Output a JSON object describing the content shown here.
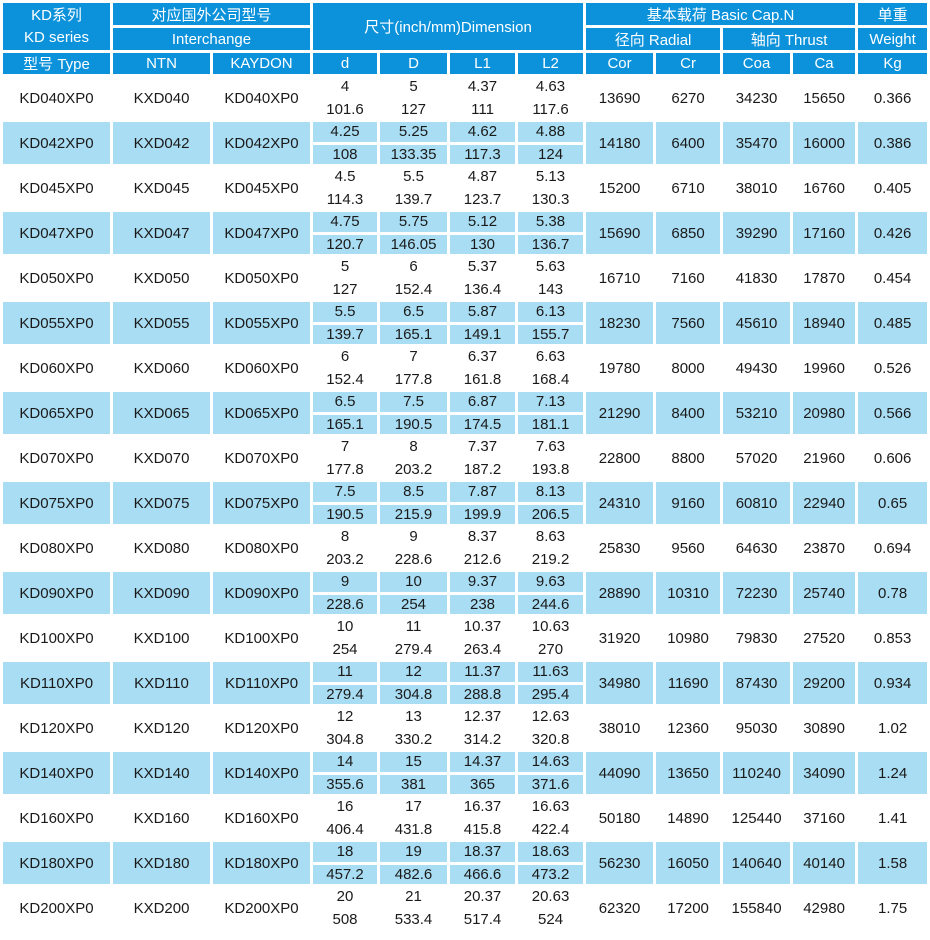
{
  "colors": {
    "header_bg": "#0c92db",
    "alt_row_bg": "#a9ddf3",
    "header_text": "#ffffff",
    "body_text": "#1a1a1a",
    "background": "#ffffff"
  },
  "table": {
    "header": {
      "kd_series_zh": "KD系列",
      "kd_series_en": "KD series",
      "interchange_zh": "对应国外公司型号",
      "interchange_en": "Interchange",
      "dimension": "尺寸(inch/mm)Dimension",
      "basic_cap": "基本载荷 Basic Cap.N",
      "radial": "径向 Radial",
      "thrust": "轴向 Thrust",
      "weight_zh": "单重",
      "weight_en": "Weight",
      "type_label": "型号 Type",
      "ntn": "NTN",
      "kaydon": "KAYDON",
      "d": "d",
      "D": "D",
      "L1": "L1",
      "L2": "L2",
      "cor": "Cor",
      "cr": "Cr",
      "coa": "Coa",
      "ca": "Ca",
      "kg": "Kg"
    },
    "rows": [
      {
        "type": "KD040XP0",
        "ntn": "KXD040",
        "kaydon": "KD040XP0",
        "d": [
          "4",
          "101.6"
        ],
        "D": [
          "5",
          "127"
        ],
        "L1": [
          "4.37",
          "111"
        ],
        "L2": [
          "4.63",
          "117.6"
        ],
        "cor": "13690",
        "cr": "6270",
        "coa": "34230",
        "ca": "15650",
        "kg": "0.366"
      },
      {
        "type": "KD042XP0",
        "ntn": "KXD042",
        "kaydon": "KD042XP0",
        "d": [
          "4.25",
          "108"
        ],
        "D": [
          "5.25",
          "133.35"
        ],
        "L1": [
          "4.62",
          "117.3"
        ],
        "L2": [
          "4.88",
          "124"
        ],
        "cor": "14180",
        "cr": "6400",
        "coa": "35470",
        "ca": "16000",
        "kg": "0.386"
      },
      {
        "type": "KD045XP0",
        "ntn": "KXD045",
        "kaydon": "KD045XP0",
        "d": [
          "4.5",
          "114.3"
        ],
        "D": [
          "5.5",
          "139.7"
        ],
        "L1": [
          "4.87",
          "123.7"
        ],
        "L2": [
          "5.13",
          "130.3"
        ],
        "cor": "15200",
        "cr": "6710",
        "coa": "38010",
        "ca": "16760",
        "kg": "0.405"
      },
      {
        "type": "KD047XP0",
        "ntn": "KXD047",
        "kaydon": "KD047XP0",
        "d": [
          "4.75",
          "120.7"
        ],
        "D": [
          "5.75",
          "146.05"
        ],
        "L1": [
          "5.12",
          "130"
        ],
        "L2": [
          "5.38",
          "136.7"
        ],
        "cor": "15690",
        "cr": "6850",
        "coa": "39290",
        "ca": "17160",
        "kg": "0.426"
      },
      {
        "type": "KD050XP0",
        "ntn": "KXD050",
        "kaydon": "KD050XP0",
        "d": [
          "5",
          "127"
        ],
        "D": [
          "6",
          "152.4"
        ],
        "L1": [
          "5.37",
          "136.4"
        ],
        "L2": [
          "5.63",
          "143"
        ],
        "cor": "16710",
        "cr": "7160",
        "coa": "41830",
        "ca": "17870",
        "kg": "0.454"
      },
      {
        "type": "KD055XP0",
        "ntn": "KXD055",
        "kaydon": "KD055XP0",
        "d": [
          "5.5",
          "139.7"
        ],
        "D": [
          "6.5",
          "165.1"
        ],
        "L1": [
          "5.87",
          "149.1"
        ],
        "L2": [
          "6.13",
          "155.7"
        ],
        "cor": "18230",
        "cr": "7560",
        "coa": "45610",
        "ca": "18940",
        "kg": "0.485"
      },
      {
        "type": "KD060XP0",
        "ntn": "KXD060",
        "kaydon": "KD060XP0",
        "d": [
          "6",
          "152.4"
        ],
        "D": [
          "7",
          "177.8"
        ],
        "L1": [
          "6.37",
          "161.8"
        ],
        "L2": [
          "6.63",
          "168.4"
        ],
        "cor": "19780",
        "cr": "8000",
        "coa": "49430",
        "ca": "19960",
        "kg": "0.526"
      },
      {
        "type": "KD065XP0",
        "ntn": "KXD065",
        "kaydon": "KD065XP0",
        "d": [
          "6.5",
          "165.1"
        ],
        "D": [
          "7.5",
          "190.5"
        ],
        "L1": [
          "6.87",
          "174.5"
        ],
        "L2": [
          "7.13",
          "181.1"
        ],
        "cor": "21290",
        "cr": "8400",
        "coa": "53210",
        "ca": "20980",
        "kg": "0.566"
      },
      {
        "type": "KD070XP0",
        "ntn": "KXD070",
        "kaydon": "KD070XP0",
        "d": [
          "7",
          "177.8"
        ],
        "D": [
          "8",
          "203.2"
        ],
        "L1": [
          "7.37",
          "187.2"
        ],
        "L2": [
          "7.63",
          "193.8"
        ],
        "cor": "22800",
        "cr": "8800",
        "coa": "57020",
        "ca": "21960",
        "kg": "0.606"
      },
      {
        "type": "KD075XP0",
        "ntn": "KXD075",
        "kaydon": "KD075XP0",
        "d": [
          "7.5",
          "190.5"
        ],
        "D": [
          "8.5",
          "215.9"
        ],
        "L1": [
          "7.87",
          "199.9"
        ],
        "L2": [
          "8.13",
          "206.5"
        ],
        "cor": "24310",
        "cr": "9160",
        "coa": "60810",
        "ca": "22940",
        "kg": "0.65"
      },
      {
        "type": "KD080XP0",
        "ntn": "KXD080",
        "kaydon": "KD080XP0",
        "d": [
          "8",
          "203.2"
        ],
        "D": [
          "9",
          "228.6"
        ],
        "L1": [
          "8.37",
          "212.6"
        ],
        "L2": [
          "8.63",
          "219.2"
        ],
        "cor": "25830",
        "cr": "9560",
        "coa": "64630",
        "ca": "23870",
        "kg": "0.694"
      },
      {
        "type": "KD090XP0",
        "ntn": "KXD090",
        "kaydon": "KD090XP0",
        "d": [
          "9",
          "228.6"
        ],
        "D": [
          "10",
          "254"
        ],
        "L1": [
          "9.37",
          "238"
        ],
        "L2": [
          "9.63",
          "244.6"
        ],
        "cor": "28890",
        "cr": "10310",
        "coa": "72230",
        "ca": "25740",
        "kg": "0.78"
      },
      {
        "type": "KD100XP0",
        "ntn": "KXD100",
        "kaydon": "KD100XP0",
        "d": [
          "10",
          "254"
        ],
        "D": [
          "11",
          "279.4"
        ],
        "L1": [
          "10.37",
          "263.4"
        ],
        "L2": [
          "10.63",
          "270"
        ],
        "cor": "31920",
        "cr": "10980",
        "coa": "79830",
        "ca": "27520",
        "kg": "0.853"
      },
      {
        "type": "KD110XP0",
        "ntn": "KXD110",
        "kaydon": "KD110XP0",
        "d": [
          "11",
          "279.4"
        ],
        "D": [
          "12",
          "304.8"
        ],
        "L1": [
          "11.37",
          "288.8"
        ],
        "L2": [
          "11.63",
          "295.4"
        ],
        "cor": "34980",
        "cr": "11690",
        "coa": "87430",
        "ca": "29200",
        "kg": "0.934"
      },
      {
        "type": "KD120XP0",
        "ntn": "KXD120",
        "kaydon": "KD120XP0",
        "d": [
          "12",
          "304.8"
        ],
        "D": [
          "13",
          "330.2"
        ],
        "L1": [
          "12.37",
          "314.2"
        ],
        "L2": [
          "12.63",
          "320.8"
        ],
        "cor": "38010",
        "cr": "12360",
        "coa": "95030",
        "ca": "30890",
        "kg": "1.02"
      },
      {
        "type": "KD140XP0",
        "ntn": "KXD140",
        "kaydon": "KD140XP0",
        "d": [
          "14",
          "355.6"
        ],
        "D": [
          "15",
          "381"
        ],
        "L1": [
          "14.37",
          "365"
        ],
        "L2": [
          "14.63",
          "371.6"
        ],
        "cor": "44090",
        "cr": "13650",
        "coa": "110240",
        "ca": "34090",
        "kg": "1.24"
      },
      {
        "type": "KD160XP0",
        "ntn": "KXD160",
        "kaydon": "KD160XP0",
        "d": [
          "16",
          "406.4"
        ],
        "D": [
          "17",
          "431.8"
        ],
        "L1": [
          "16.37",
          "415.8"
        ],
        "L2": [
          "16.63",
          "422.4"
        ],
        "cor": "50180",
        "cr": "14890",
        "coa": "125440",
        "ca": "37160",
        "kg": "1.41"
      },
      {
        "type": "KD180XP0",
        "ntn": "KXD180",
        "kaydon": "KD180XP0",
        "d": [
          "18",
          "457.2"
        ],
        "D": [
          "19",
          "482.6"
        ],
        "L1": [
          "18.37",
          "466.6"
        ],
        "L2": [
          "18.63",
          "473.2"
        ],
        "cor": "56230",
        "cr": "16050",
        "coa": "140640",
        "ca": "40140",
        "kg": "1.58"
      },
      {
        "type": "KD200XP0",
        "ntn": "KXD200",
        "kaydon": "KD200XP0",
        "d": [
          "20",
          "508"
        ],
        "D": [
          "21",
          "533.4"
        ],
        "L1": [
          "20.37",
          "517.4"
        ],
        "L2": [
          "20.63",
          "524"
        ],
        "cor": "62320",
        "cr": "17200",
        "coa": "155840",
        "ca": "42980",
        "kg": "1.75"
      }
    ]
  }
}
